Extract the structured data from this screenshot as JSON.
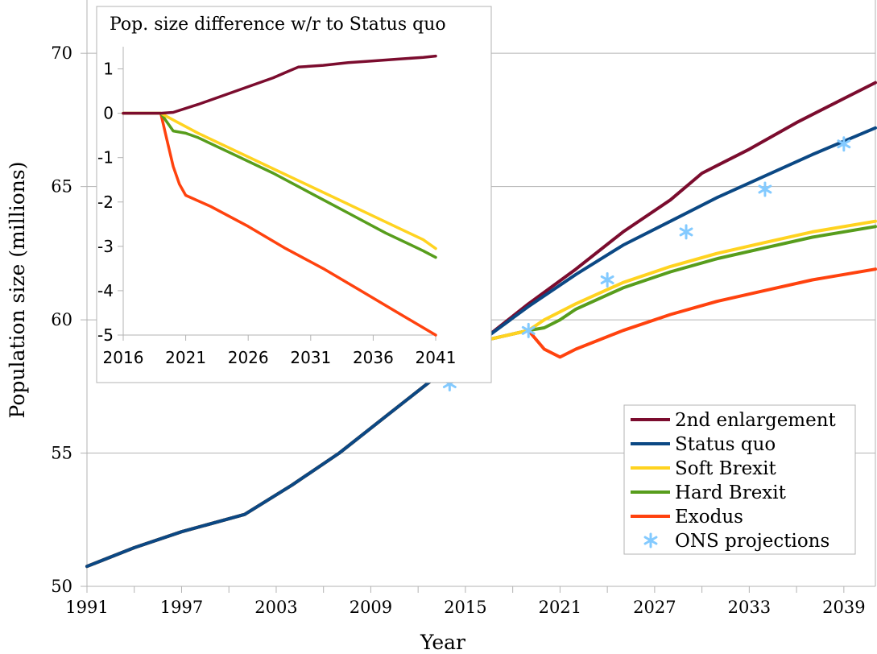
{
  "chart_data": [
    {
      "type": "line",
      "title": "",
      "xlabel": "Year",
      "ylabel": "Population size (millions)",
      "xlim": [
        1991,
        2041
      ],
      "ylim": [
        50,
        72
      ],
      "x_ticks": [
        "1991",
        "1997",
        "2003",
        "2009",
        "2015",
        "2021",
        "2027",
        "2033",
        "2039"
      ],
      "y_ticks": [
        "50",
        "55",
        "60",
        "65",
        "70"
      ],
      "grid": "horizontal",
      "legend_position": "bottom-right",
      "series": [
        {
          "name": "2nd enlargement",
          "color": "#7b0c2e",
          "style": "line",
          "x": [
            1991,
            1994,
            1997,
            2001,
            2004,
            2007,
            2010,
            2013,
            2016,
            2019,
            2022,
            2025,
            2028,
            2030,
            2033,
            2036,
            2039,
            2041
          ],
          "y": [
            50.75,
            51.45,
            52.05,
            52.7,
            53.8,
            55.0,
            56.4,
            57.8,
            59.2,
            60.6,
            61.9,
            63.3,
            64.5,
            65.5,
            66.4,
            67.4,
            68.3,
            68.9
          ]
        },
        {
          "name": "Status quo",
          "color": "#0b4884",
          "style": "line",
          "x": [
            1991,
            1994,
            1997,
            2001,
            2004,
            2007,
            2010,
            2013,
            2016,
            2019,
            2022,
            2025,
            2028,
            2031,
            2034,
            2037,
            2041
          ],
          "y": [
            50.75,
            51.45,
            52.05,
            52.7,
            53.8,
            55.0,
            56.4,
            57.8,
            59.2,
            60.5,
            61.7,
            62.8,
            63.7,
            64.6,
            65.4,
            66.2,
            67.2
          ]
        },
        {
          "name": "Soft Brexit",
          "color": "#ffd320",
          "style": "line",
          "x": [
            1991,
            1994,
            1997,
            2001,
            2004,
            2007,
            2010,
            2013,
            2016,
            2019,
            2020,
            2022,
            2025,
            2028,
            2031,
            2034,
            2037,
            2041
          ],
          "y": [
            50.75,
            51.45,
            52.05,
            52.7,
            53.8,
            55.0,
            56.4,
            57.8,
            59.2,
            59.6,
            60.0,
            60.6,
            61.4,
            62.0,
            62.5,
            62.9,
            63.3,
            63.7
          ]
        },
        {
          "name": "Hard Brexit",
          "color": "#579d1c",
          "style": "line",
          "x": [
            1991,
            1994,
            1997,
            2001,
            2004,
            2007,
            2010,
            2013,
            2016,
            2019,
            2020,
            2021,
            2022,
            2025,
            2028,
            2031,
            2034,
            2037,
            2041
          ],
          "y": [
            50.75,
            51.45,
            52.05,
            52.7,
            53.8,
            55.0,
            56.4,
            57.8,
            59.2,
            59.6,
            59.7,
            60.0,
            60.4,
            61.2,
            61.8,
            62.3,
            62.7,
            63.1,
            63.5
          ]
        },
        {
          "name": "Exodus",
          "color": "#ff420e",
          "style": "line",
          "x": [
            1991,
            1994,
            1997,
            2001,
            2004,
            2007,
            2010,
            2013,
            2016,
            2019,
            2020,
            2021,
            2022,
            2025,
            2028,
            2031,
            2034,
            2037,
            2041
          ],
          "y": [
            50.75,
            51.45,
            52.05,
            52.7,
            53.8,
            55.0,
            56.4,
            57.8,
            59.2,
            59.6,
            58.9,
            58.6,
            58.9,
            59.6,
            60.2,
            60.7,
            61.1,
            61.5,
            61.9
          ]
        },
        {
          "name": "ONS projections",
          "color": "#83caff",
          "style": "markers",
          "x": [
            2014,
            2019,
            2024,
            2029,
            2034,
            2039
          ],
          "y": [
            57.6,
            59.6,
            61.5,
            63.3,
            64.9,
            66.6
          ]
        }
      ]
    },
    {
      "type": "line",
      "title": "Pop. size difference w/r to Status quo",
      "xlim": [
        2016,
        2041
      ],
      "ylim": [
        -5,
        1.5
      ],
      "x_ticks": [
        "2016",
        "2021",
        "2026",
        "2031",
        "2036",
        "2041"
      ],
      "y_ticks": [
        "1",
        "0",
        "-1",
        "-2",
        "-3",
        "-4",
        "-5"
      ],
      "series": [
        {
          "name": "2nd enlargement",
          "color": "#7b0c2e",
          "x": [
            2016,
            2017,
            2018,
            2019,
            2020,
            2022,
            2024,
            2026,
            2028,
            2029,
            2030,
            2032,
            2034,
            2036,
            2038,
            2040,
            2041
          ],
          "y": [
            0,
            0,
            0,
            0,
            0.02,
            0.2,
            0.4,
            0.6,
            0.8,
            0.92,
            1.04,
            1.08,
            1.14,
            1.18,
            1.22,
            1.26,
            1.29
          ]
        },
        {
          "name": "Soft Brexit",
          "color": "#ffd320",
          "x": [
            2016,
            2017,
            2018,
            2019,
            2020,
            2022,
            2025,
            2028,
            2031,
            2034,
            2037,
            2040,
            2041
          ],
          "y": [
            0,
            0,
            0,
            0,
            -0.15,
            -0.45,
            -0.85,
            -1.25,
            -1.65,
            -2.05,
            -2.45,
            -2.85,
            -3.05
          ]
        },
        {
          "name": "Hard Brexit",
          "color": "#579d1c",
          "x": [
            2016,
            2017,
            2018,
            2019,
            2020,
            2021,
            2022,
            2025,
            2028,
            2031,
            2034,
            2037,
            2040,
            2041
          ],
          "y": [
            0,
            0,
            0,
            0,
            -0.4,
            -0.45,
            -0.55,
            -0.95,
            -1.35,
            -1.8,
            -2.25,
            -2.7,
            -3.1,
            -3.25
          ]
        },
        {
          "name": "Exodus",
          "color": "#ff420e",
          "x": [
            2016,
            2017,
            2018,
            2019,
            2019.5,
            2020,
            2020.5,
            2021,
            2023,
            2026,
            2029,
            2032,
            2035,
            2038,
            2041
          ],
          "y": [
            0,
            0,
            0,
            0,
            -0.6,
            -1.2,
            -1.6,
            -1.85,
            -2.1,
            -2.55,
            -3.05,
            -3.5,
            -4.0,
            -4.5,
            -5.0
          ]
        }
      ]
    }
  ]
}
